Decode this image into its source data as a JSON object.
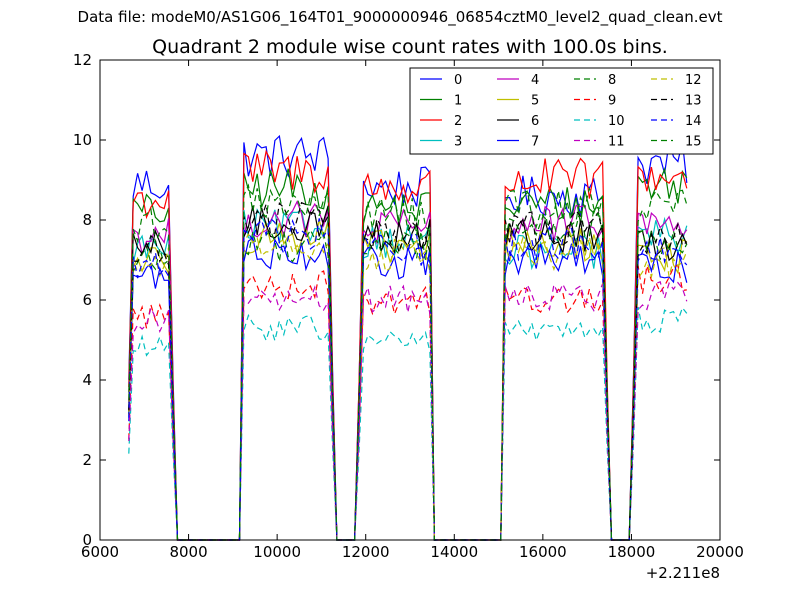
{
  "figure": {
    "supertitle": "Data file: modeM0/AS1G06_164T01_9000000946_06854cztM0_level2_quad_clean.evt"
  },
  "chart_data": {
    "type": "line",
    "title": "Quadrant 2 module wise count rates with 100.0s bins.",
    "xlabel": "",
    "ylabel": "",
    "x_offset_label": "+2.211e8",
    "xlim": [
      6000,
      20000
    ],
    "ylim": [
      0,
      12
    ],
    "xticks": [
      6000,
      8000,
      10000,
      12000,
      14000,
      16000,
      18000,
      20000
    ],
    "yticks": [
      0,
      2,
      4,
      6,
      8,
      10,
      12
    ],
    "grid": false,
    "legend": {
      "placement": "top-right",
      "columns": 4
    },
    "segments": [
      [
        6650,
        7650
      ],
      [
        9200,
        11250
      ],
      [
        11850,
        13500
      ],
      [
        15100,
        17450
      ],
      [
        18050,
        19300
      ]
    ],
    "gap_level": 0,
    "series": [
      {
        "name": "0",
        "color": "#0000ff",
        "dash": "solid",
        "levels": [
          8.9,
          9.6,
          8.8,
          8.6,
          9.4
        ]
      },
      {
        "name": "1",
        "color": "#008000",
        "dash": "solid",
        "levels": [
          8.2,
          8.8,
          8.3,
          8.4,
          8.9
        ]
      },
      {
        "name": "2",
        "color": "#ff0000",
        "dash": "solid",
        "levels": [
          8.5,
          9.2,
          8.8,
          9.0,
          9.1
        ]
      },
      {
        "name": "3",
        "color": "#00bfbf",
        "dash": "solid",
        "levels": [
          7.3,
          7.8,
          7.5,
          7.2,
          7.6
        ]
      },
      {
        "name": "4",
        "color": "#bf00bf",
        "dash": "solid",
        "levels": [
          7.6,
          8.0,
          7.8,
          7.9,
          7.9
        ]
      },
      {
        "name": "5",
        "color": "#bfbf00",
        "dash": "solid",
        "levels": [
          7.0,
          7.6,
          7.3,
          7.4,
          7.1
        ]
      },
      {
        "name": "6",
        "color": "#000000",
        "dash": "solid",
        "levels": [
          7.3,
          7.9,
          7.6,
          7.6,
          7.4
        ]
      },
      {
        "name": "7",
        "color": "#0000ff",
        "dash": "solid",
        "levels": [
          6.6,
          7.2,
          6.9,
          7.0,
          6.8
        ]
      },
      {
        "name": "8",
        "color": "#008000",
        "dash": "dashed",
        "levels": [
          7.0,
          7.4,
          7.4,
          7.9,
          7.3
        ]
      },
      {
        "name": "9",
        "color": "#ff0000",
        "dash": "dashed",
        "levels": [
          5.6,
          6.4,
          6.0,
          6.0,
          6.5
        ]
      },
      {
        "name": "10",
        "color": "#00bfbf",
        "dash": "dashed",
        "levels": [
          4.8,
          5.3,
          5.0,
          5.2,
          5.5
        ]
      },
      {
        "name": "11",
        "color": "#bf00bf",
        "dash": "dashed",
        "levels": [
          5.5,
          6.0,
          6.0,
          6.1,
          6.1
        ]
      },
      {
        "name": "12",
        "color": "#bfbf00",
        "dash": "dashed",
        "levels": [
          6.9,
          7.4,
          7.1,
          7.2,
          6.9
        ]
      },
      {
        "name": "13",
        "color": "#000000",
        "dash": "dashed",
        "levels": [
          7.2,
          8.0,
          7.6,
          7.8,
          7.5
        ]
      },
      {
        "name": "14",
        "color": "#0000ff",
        "dash": "dashed",
        "levels": [
          6.8,
          7.6,
          7.3,
          7.4,
          7.3
        ]
      },
      {
        "name": "15",
        "color": "#008000",
        "dash": "dashed",
        "levels": [
          7.8,
          8.4,
          8.1,
          8.3,
          8.3
        ]
      }
    ]
  }
}
